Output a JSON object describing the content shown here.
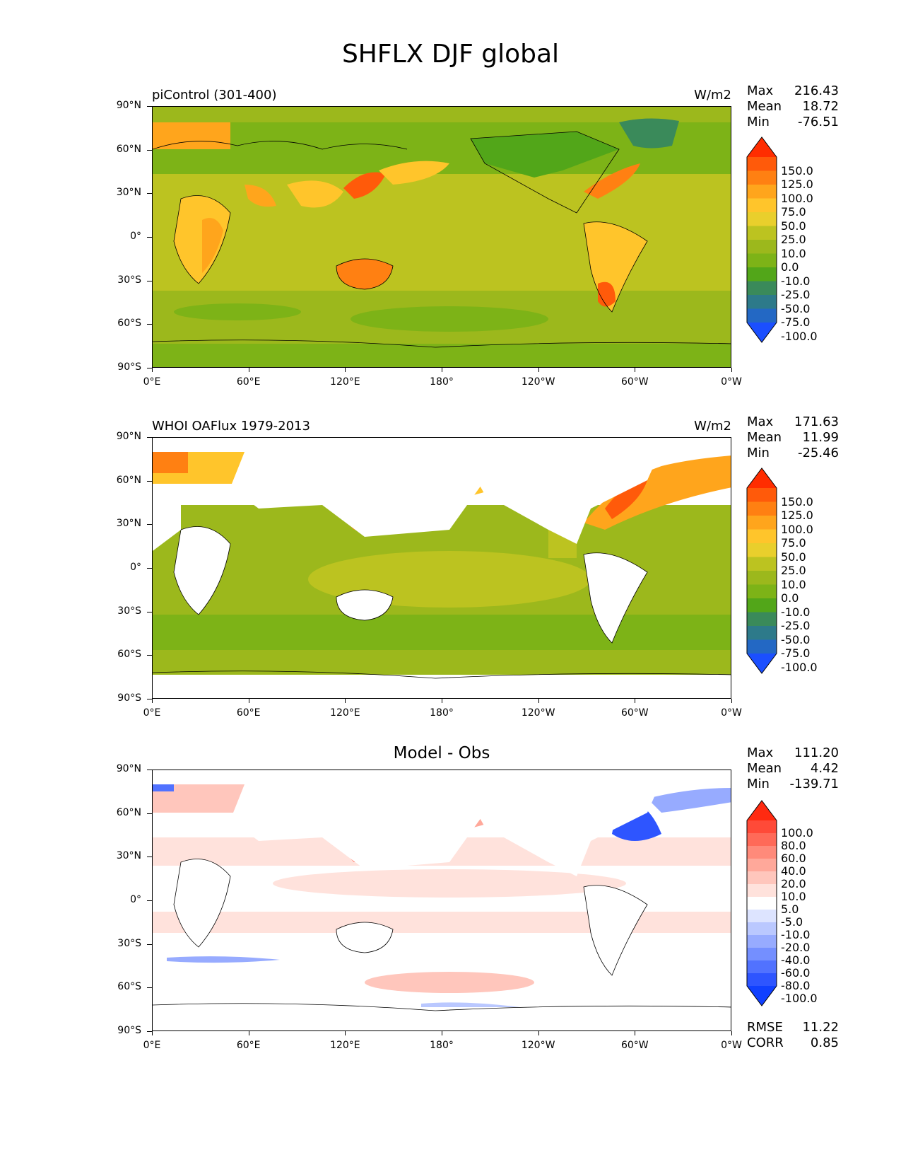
{
  "title": "SHFLX DJF global",
  "x_ticks": [
    "0°E",
    "60°E",
    "120°E",
    "180°",
    "120°W",
    "60°W",
    "0°W"
  ],
  "y_ticks": [
    "90°N",
    "60°N",
    "30°N",
    "0°",
    "30°S",
    "60°S",
    "90°S"
  ],
  "panels": [
    {
      "title_left": "piControl (301-400)",
      "title_right": "W/m2",
      "title_center": "",
      "stats": [
        {
          "label": "Max",
          "value": "216.43"
        },
        {
          "label": "Mean",
          "value": "18.72"
        },
        {
          "label": "Min",
          "value": "-76.51"
        }
      ],
      "colorbar_labels": [
        "150.0",
        "125.0",
        "100.0",
        "75.0",
        "50.0",
        "25.0",
        "10.0",
        "0.0",
        "-10.0",
        "-25.0",
        "-50.0",
        "-75.0",
        "-100.0"
      ],
      "colorbar_colors": [
        "#ff2d00",
        "#ff5a0a",
        "#ff8012",
        "#ffa51c",
        "#ffc52b",
        "#e9cf2c",
        "#bcc320",
        "#9cb81c",
        "#7db317",
        "#52a619",
        "#3a8a5a",
        "#2d7a8a",
        "#2368c4",
        "#1b4fff"
      ],
      "extra": []
    },
    {
      "title_left": "WHOI OAFlux 1979-2013",
      "title_right": "W/m2",
      "title_center": "",
      "stats": [
        {
          "label": "Max",
          "value": "171.63"
        },
        {
          "label": "Mean",
          "value": "11.99"
        },
        {
          "label": "Min",
          "value": "-25.46"
        }
      ],
      "colorbar_labels": [
        "150.0",
        "125.0",
        "100.0",
        "75.0",
        "50.0",
        "25.0",
        "10.0",
        "0.0",
        "-10.0",
        "-25.0",
        "-50.0",
        "-75.0",
        "-100.0"
      ],
      "colorbar_colors": [
        "#ff2d00",
        "#ff5a0a",
        "#ff8012",
        "#ffa51c",
        "#ffc52b",
        "#e9cf2c",
        "#bcc320",
        "#9cb81c",
        "#7db317",
        "#52a619",
        "#3a8a5a",
        "#2d7a8a",
        "#2368c4",
        "#1b4fff"
      ],
      "extra": []
    },
    {
      "title_left": "",
      "title_right": "",
      "title_center": "Model - Obs",
      "stats": [
        {
          "label": "Max",
          "value": "111.20"
        },
        {
          "label": "Mean",
          "value": "4.42"
        },
        {
          "label": "Min",
          "value": "-139.71"
        }
      ],
      "colorbar_labels": [
        "100.0",
        "80.0",
        "60.0",
        "40.0",
        "20.0",
        "10.0",
        "5.0",
        "-5.0",
        "-10.0",
        "-20.0",
        "-40.0",
        "-60.0",
        "-80.0",
        "-100.0"
      ],
      "colorbar_colors": [
        "#ff2a10",
        "#ff4a38",
        "#ff6a58",
        "#ff8a7a",
        "#ffa89a",
        "#ffc6bc",
        "#ffe2dc",
        "#ffffff",
        "#dde4ff",
        "#bac8ff",
        "#97abff",
        "#748fff",
        "#5172ff",
        "#2e55ff",
        "#1040ff"
      ],
      "extra": [
        {
          "label": "RMSE",
          "value": "11.22"
        },
        {
          "label": "CORR",
          "value": "0.85"
        }
      ]
    }
  ]
}
